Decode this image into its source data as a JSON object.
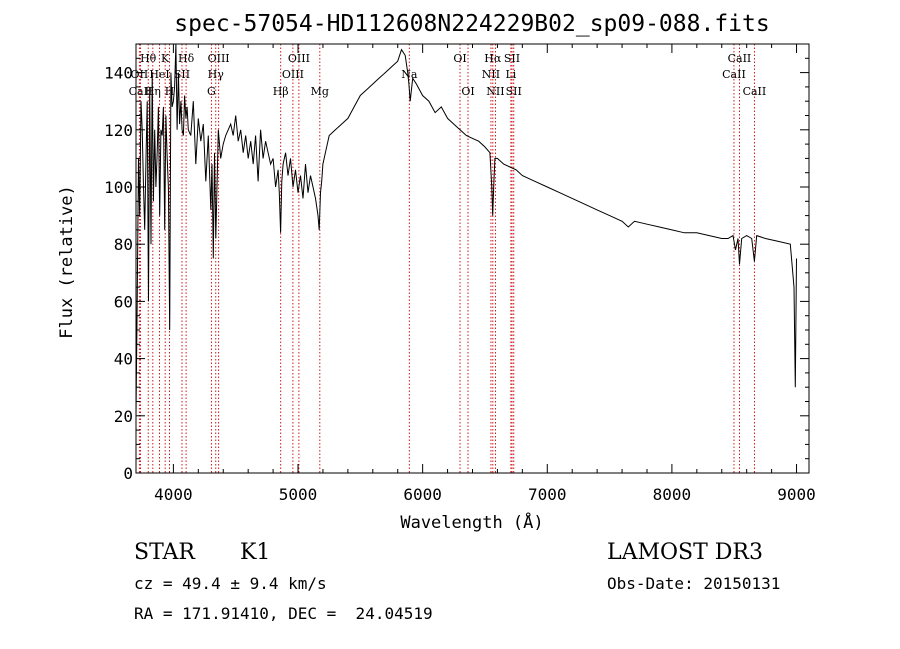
{
  "chart_data": {
    "type": "line",
    "title": "spec-57054-HD112608N224229B02_sp09-088.fits",
    "xlabel": "Wavelength (Å)",
    "ylabel": "Flux (relative)",
    "xlim": [
      3700,
      9100
    ],
    "ylim": [
      0,
      150
    ],
    "xticks": [
      4000,
      5000,
      6000,
      7000,
      8000,
      9000
    ],
    "yticks": [
      0,
      20,
      40,
      60,
      80,
      100,
      120,
      140
    ],
    "grid": false,
    "series": [
      {
        "name": "flux",
        "x": [
          3700,
          3710,
          3720,
          3730,
          3740,
          3750,
          3760,
          3770,
          3780,
          3790,
          3800,
          3810,
          3820,
          3830,
          3840,
          3850,
          3860,
          3870,
          3880,
          3890,
          3900,
          3910,
          3920,
          3930,
          3940,
          3950,
          3960,
          3970,
          3980,
          3990,
          4000,
          4010,
          4020,
          4030,
          4040,
          4050,
          4060,
          4070,
          4080,
          4090,
          4100,
          4110,
          4120,
          4140,
          4160,
          4180,
          4200,
          4220,
          4240,
          4260,
          4280,
          4300,
          4310,
          4320,
          4330,
          4340,
          4350,
          4360,
          4380,
          4400,
          4420,
          4440,
          4460,
          4480,
          4500,
          4520,
          4540,
          4560,
          4580,
          4600,
          4620,
          4640,
          4660,
          4680,
          4700,
          4720,
          4740,
          4760,
          4780,
          4800,
          4820,
          4840,
          4850,
          4860,
          4870,
          4880,
          4900,
          4920,
          4940,
          4960,
          4980,
          5000,
          5020,
          5040,
          5060,
          5080,
          5100,
          5120,
          5140,
          5160,
          5170,
          5180,
          5190,
          5200,
          5220,
          5250,
          5300,
          5350,
          5400,
          5450,
          5500,
          5550,
          5600,
          5650,
          5700,
          5750,
          5800,
          5830,
          5860,
          5880,
          5890,
          5900,
          5920,
          5950,
          6000,
          6050,
          6100,
          6150,
          6200,
          6250,
          6300,
          6350,
          6400,
          6450,
          6500,
          6540,
          6555,
          6562,
          6570,
          6580,
          6600,
          6650,
          6700,
          6750,
          6800,
          6900,
          7000,
          7100,
          7200,
          7300,
          7400,
          7500,
          7600,
          7650,
          7700,
          7800,
          7900,
          8000,
          8100,
          8200,
          8300,
          8400,
          8450,
          8490,
          8498,
          8510,
          8530,
          8542,
          8560,
          8600,
          8640,
          8662,
          8680,
          8750,
          8850,
          8950,
          8980,
          8990,
          9000
        ],
        "values": [
          20,
          60,
          110,
          90,
          130,
          120,
          100,
          85,
          110,
          130,
          60,
          135,
          80,
          140,
          95,
          120,
          100,
          112,
          128,
          90,
          120,
          118,
          128,
          85,
          125,
          110,
          100,
          50,
          140,
          128,
          130,
          135,
          150,
          120,
          140,
          122,
          130,
          120,
          118,
          132,
          124,
          128,
          120,
          118,
          130,
          108,
          124,
          116,
          122,
          102,
          118,
          92,
          108,
          75,
          112,
          82,
          100,
          120,
          110,
          115,
          118,
          120,
          122,
          118,
          125,
          116,
          120,
          112,
          118,
          110,
          116,
          108,
          118,
          102,
          120,
          110,
          116,
          112,
          108,
          110,
          100,
          106,
          98,
          84,
          102,
          108,
          112,
          104,
          110,
          100,
          106,
          98,
          104,
          96,
          108,
          98,
          104,
          100,
          96,
          90,
          85,
          98,
          102,
          108,
          112,
          118,
          120,
          122,
          124,
          128,
          132,
          134,
          136,
          138,
          140,
          142,
          144,
          148,
          146,
          140,
          136,
          130,
          138,
          136,
          132,
          130,
          126,
          128,
          124,
          122,
          120,
          118,
          117,
          116,
          114,
          112,
          100,
          90,
          100,
          110,
          110,
          108,
          107,
          106,
          104,
          102,
          100,
          98,
          96,
          94,
          92,
          90,
          88,
          86,
          88,
          87,
          86,
          85,
          84,
          84,
          83,
          82,
          82,
          83,
          81,
          78,
          82,
          73,
          82,
          83,
          82,
          74,
          83,
          82,
          81,
          80,
          65,
          30,
          75
        ]
      }
    ],
    "line_markers": [
      {
        "label": "Hθ",
        "wl": 3798,
        "row": 0
      },
      {
        "label": "OII",
        "wl": 3727,
        "row": 1
      },
      {
        "label": "CaII",
        "wl": 3736,
        "row": 2
      },
      {
        "label": "Hη",
        "wl": 3835,
        "row": 2
      },
      {
        "label": "K",
        "wl": 3934,
        "row": 0
      },
      {
        "label": "HeI",
        "wl": 3889,
        "row": 1
      },
      {
        "label": "H",
        "wl": 3969,
        "row": 2
      },
      {
        "label": "Hδ",
        "wl": 4102,
        "row": 0
      },
      {
        "label": "SII",
        "wl": 4069,
        "row": 1
      },
      {
        "label": "OIII",
        "wl": 4363,
        "row": 0
      },
      {
        "label": "Hγ",
        "wl": 4340,
        "row": 1
      },
      {
        "label": "G",
        "wl": 4305,
        "row": 2
      },
      {
        "label": "Hβ",
        "wl": 4861,
        "row": 2
      },
      {
        "label": "OIII",
        "wl": 5007,
        "row": 0
      },
      {
        "label": "OIII",
        "wl": 4959,
        "row": 1
      },
      {
        "label": "Mg",
        "wl": 5175,
        "row": 2
      },
      {
        "label": "Na",
        "wl": 5893,
        "row": 1
      },
      {
        "label": "OI",
        "wl": 6300,
        "row": 0
      },
      {
        "label": "OI",
        "wl": 6364,
        "row": 2
      },
      {
        "label": "Hα",
        "wl": 6563,
        "row": 0
      },
      {
        "label": "NII",
        "wl": 6548,
        "row": 1
      },
      {
        "label": "NII",
        "wl": 6584,
        "row": 2
      },
      {
        "label": "SII",
        "wl": 6717,
        "row": 0
      },
      {
        "label": "Li",
        "wl": 6708,
        "row": 1
      },
      {
        "label": "SII",
        "wl": 6731,
        "row": 2
      },
      {
        "label": "CaII",
        "wl": 8542,
        "row": 0
      },
      {
        "label": "CaII",
        "wl": 8498,
        "row": 1
      },
      {
        "label": "CaII",
        "wl": 8662,
        "row": 2
      }
    ],
    "marker_color": "#cc0000",
    "line_color": "#000000"
  },
  "info": {
    "object_class": "STAR",
    "subclass": "K1",
    "survey": "LAMOST DR3",
    "redshift": "cz = 49.4 ± 9.4 km/s",
    "obs_date": "Obs-Date: 20150131",
    "coords": "RA = 171.91410, DEC =  24.04519"
  }
}
